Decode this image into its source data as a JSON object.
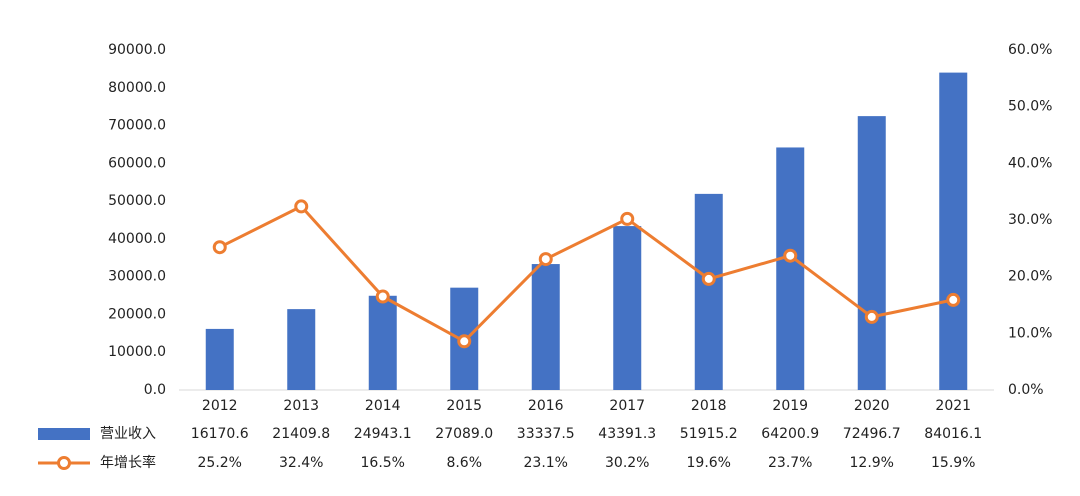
{
  "chart_data": {
    "type": "bar_line",
    "categories": [
      "2012",
      "2013",
      "2014",
      "2015",
      "2016",
      "2017",
      "2018",
      "2019",
      "2020",
      "2021"
    ],
    "series": [
      {
        "name": "营业收入",
        "type": "bar",
        "color": "#4472c4",
        "values": [
          16170.6,
          21409.8,
          24943.1,
          27089.0,
          33337.5,
          43391.3,
          51915.2,
          64200.9,
          72496.7,
          84016.1
        ],
        "value_labels": [
          "16170.6",
          "21409.8",
          "24943.1",
          "27089.0",
          "33337.5",
          "43391.3",
          "51915.2",
          "64200.9",
          "72496.7",
          "84016.1"
        ]
      },
      {
        "name": "年增长率",
        "type": "line",
        "axis": "y2",
        "color": "#ed7d31",
        "values": [
          25.2,
          32.4,
          16.5,
          8.6,
          23.1,
          30.2,
          19.6,
          23.7,
          12.9,
          15.9
        ],
        "value_labels": [
          "25.2%",
          "32.4%",
          "16.5%",
          "8.6%",
          "23.1%",
          "30.2%",
          "19.6%",
          "23.7%",
          "12.9%",
          "15.9%"
        ]
      }
    ],
    "ylim": [
      0,
      90000
    ],
    "yticks": [
      {
        "value": 0,
        "label": "0.0"
      },
      {
        "value": 10000,
        "label": "10000.0"
      },
      {
        "value": 20000,
        "label": "20000.0"
      },
      {
        "value": 30000,
        "label": "30000.0"
      },
      {
        "value": 40000,
        "label": "40000.0"
      },
      {
        "value": 50000,
        "label": "50000.0"
      },
      {
        "value": 60000,
        "label": "60000.0"
      },
      {
        "value": 70000,
        "label": "70000.0"
      },
      {
        "value": 80000,
        "label": "80000.0"
      },
      {
        "value": 90000,
        "label": "90000.0"
      }
    ],
    "y2lim": [
      0,
      60
    ],
    "y2ticks": [
      {
        "value": 0,
        "label": "0.0%"
      },
      {
        "value": 10,
        "label": "10.0%"
      },
      {
        "value": 20,
        "label": "20.0%"
      },
      {
        "value": 30,
        "label": "30.0%"
      },
      {
        "value": 40,
        "label": "40.0%"
      },
      {
        "value": 50,
        "label": "50.0%"
      },
      {
        "value": 60,
        "label": "60.0%"
      }
    ],
    "grid": false,
    "legend": "bottom"
  }
}
